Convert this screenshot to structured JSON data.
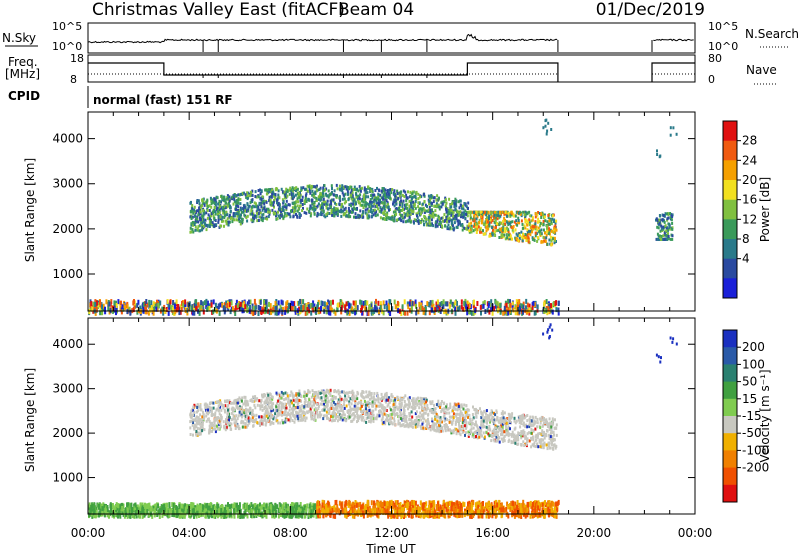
{
  "header": {
    "station": "Christmas Valley East (fitACF)",
    "beam": "Beam 04",
    "date": "01/Dec/2019"
  },
  "status_panels": {
    "nsky_label": "N.Sky",
    "nsky_ticks": [
      "10^5",
      "10^0"
    ],
    "nsearch_label": "N.Search",
    "nsearch_ticks": [
      "10^5",
      "10^0"
    ],
    "freq_label_1": "Freq.",
    "freq_label_2": "[MHz]",
    "freq_ticks": [
      "18",
      "8"
    ],
    "nave_label": "Nave",
    "nave_ticks": [
      "80",
      "0"
    ],
    "cpid_label": "CPID",
    "cpid_text": "normal (fast) 151 RF"
  },
  "chart_data": [
    {
      "type": "heatmap",
      "panel": "power",
      "ylabel": "Slant Range [km]",
      "xlabel": "Time UT",
      "yticks": [
        "1000",
        "2000",
        "3000",
        "4000"
      ],
      "ylim": [
        180,
        4590
      ],
      "xlim": [
        "00:00",
        "24:00"
      ],
      "xticks": [
        "00:00",
        "04:00",
        "08:00",
        "12:00",
        "16:00",
        "20:00",
        "00:00"
      ],
      "colorbar": {
        "label": "Power [dB]",
        "ticks": [
          "28",
          "24",
          "20",
          "16",
          "12",
          "8",
          "4"
        ],
        "colors": [
          "#e01010",
          "#f05a10",
          "#f5a000",
          "#f2e020",
          "#80c040",
          "#3a9a5a",
          "#2a7a8a",
          "#2a4aa0",
          "#1a20d8"
        ]
      },
      "data_gaps": [
        [
          "18:35",
          "22:20"
        ]
      ],
      "echo_regions": [
        {
          "t": [
            "04:00",
            "15:00"
          ],
          "range_km": [
            1800,
            3100
          ],
          "level_db": 8
        },
        {
          "t": [
            "15:00",
            "18:30"
          ],
          "range_km": [
            1600,
            2400
          ],
          "level_db": 16
        },
        {
          "t": [
            "22:25",
            "23:05"
          ],
          "range_km": [
            1800,
            2400
          ],
          "level_db": 12
        },
        {
          "t": [
            "00:00",
            "18:35"
          ],
          "range_km": [
            180,
            450
          ],
          "level_db": 16
        }
      ]
    },
    {
      "type": "heatmap",
      "panel": "velocity",
      "ylabel": "Slant Range [km]",
      "xlabel": "Time UT",
      "yticks": [
        "1000",
        "2000",
        "3000",
        "4000"
      ],
      "ylim": [
        180,
        4590
      ],
      "xlim": [
        "00:00",
        "24:00"
      ],
      "xticks": [
        "00:00",
        "04:00",
        "08:00",
        "12:00",
        "16:00",
        "20:00",
        "00:00"
      ],
      "colorbar": {
        "label": "Velocity [m s⁻¹]",
        "ticks": [
          "200",
          "100",
          "50",
          "15",
          "-15",
          "-50",
          "-100",
          "-200"
        ],
        "colors": [
          "#1a30c0",
          "#2a5aa8",
          "#2a8070",
          "#40a040",
          "#80cc50",
          "#c8c8c0",
          "#f0b000",
          "#f08000",
          "#f05000",
          "#e01010"
        ]
      },
      "echo_regions": [
        {
          "t": [
            "04:00",
            "18:30"
          ],
          "range_km": [
            1600,
            3100
          ],
          "velocity_ms": 0
        },
        {
          "t": [
            "00:00",
            "09:00"
          ],
          "range_km": [
            180,
            450
          ],
          "velocity_ms": 50
        },
        {
          "t": [
            "09:00",
            "18:35"
          ],
          "range_km": [
            180,
            500
          ],
          "velocity_ms": -50
        }
      ]
    }
  ]
}
